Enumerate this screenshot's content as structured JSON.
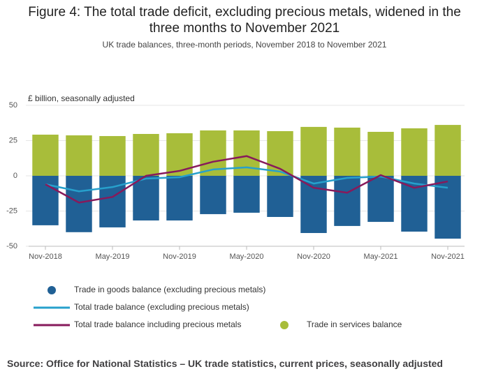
{
  "chart_data": {
    "type": "bar",
    "title": "Figure 4: The total trade deficit, excluding precious metals, widened in the three months to November 2021",
    "subtitle": "UK trade balances, three-month periods, November 2018 to November 2021",
    "y_label": "£ billion, seasonally adjusted",
    "source": "Source: Office for National Statistics – UK trade statistics, current prices, seasonally adjusted",
    "categories": [
      "Nov-2018",
      null,
      "May-2019",
      null,
      "Nov-2019",
      null,
      "May-2020",
      null,
      "Nov-2020",
      null,
      "May-2021",
      null,
      "Nov-2021"
    ],
    "ylim": [
      -50,
      50
    ],
    "yticks": [
      50,
      25,
      0,
      -25,
      -50
    ],
    "grid": true,
    "series": [
      {
        "name": "Trade in goods balance (excluding precious metals)",
        "type": "bar",
        "color": "#206095",
        "values": [
          -35.1,
          -40,
          -36.6,
          -31.7,
          -31.7,
          -27.2,
          -26.2,
          -29.2,
          -40.6,
          -35.6,
          -32.7,
          -39.6,
          -44.6
        ]
      },
      {
        "name": "Total trade balance (excluding precious metals)",
        "type": "line",
        "color": "#27a0cc",
        "values": [
          -6,
          -11,
          -8,
          -2,
          -1,
          4.5,
          6,
          3,
          -5.5,
          -1.5,
          -0.5,
          -5.5,
          -8.5
        ]
      },
      {
        "name": "Total trade balance including precious metals",
        "type": "line",
        "color": "#871a5b",
        "values": [
          -6,
          -19,
          -15,
          0,
          3.5,
          10,
          14,
          5,
          -8.5,
          -12,
          0.5,
          -8.5,
          -4
        ]
      },
      {
        "name": "Trade in services balance",
        "type": "bar",
        "color": "#a8bd3a",
        "values": [
          29.2,
          28.7,
          28.2,
          29.7,
          30.2,
          32.2,
          32.2,
          31.7,
          34.7,
          34.2,
          31.2,
          33.7,
          36.1
        ]
      }
    ]
  }
}
